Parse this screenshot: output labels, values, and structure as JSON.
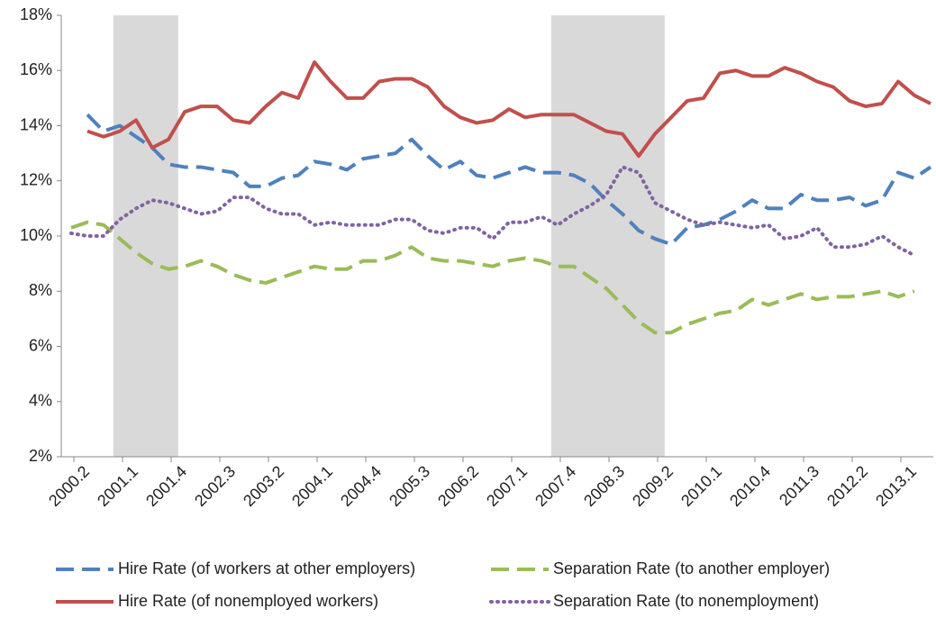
{
  "chart_data": {
    "type": "line",
    "categories": [
      null,
      "2000.2",
      null,
      null,
      "2001.1",
      null,
      null,
      "2001.4",
      null,
      null,
      "2002.3",
      null,
      null,
      "2003.2",
      null,
      null,
      "2004.1",
      null,
      null,
      "2004.4",
      null,
      null,
      "2005.3",
      null,
      null,
      "2006.2",
      null,
      null,
      "2007.1",
      null,
      null,
      "2007.4",
      null,
      null,
      "2008.3",
      null,
      null,
      "2009.2",
      null,
      null,
      "2010.1",
      null,
      null,
      "2010.4",
      null,
      null,
      "2011.3",
      null,
      null,
      "2012.2",
      null,
      null,
      "2013.1",
      null
    ],
    "series": [
      {
        "name": "Hire Rate (of workers at other employers)",
        "color": "#4f81bd",
        "dash": "dashed",
        "values": [
          null,
          14.4,
          13.8,
          14.0,
          13.6,
          13.2,
          12.6,
          12.5,
          12.5,
          12.4,
          12.3,
          11.8,
          11.8,
          12.1,
          12.2,
          12.7,
          12.6,
          12.4,
          12.8,
          12.9,
          13.0,
          13.5,
          12.9,
          12.4,
          12.7,
          12.2,
          12.1,
          12.3,
          12.5,
          12.3,
          12.3,
          12.2,
          11.9,
          11.3,
          10.8,
          10.2,
          9.9,
          9.7,
          10.3,
          10.4,
          10.6,
          10.9,
          11.3,
          11.0,
          11.0,
          11.5,
          11.3,
          11.3,
          11.4,
          11.1,
          11.3,
          12.3,
          12.1,
          12.5
        ]
      },
      {
        "name": "Separation Rate (to another employer)",
        "color": "#9bbb59",
        "dash": "dashed",
        "values": [
          10.3,
          10.5,
          10.4,
          9.9,
          9.4,
          9.0,
          8.8,
          8.9,
          9.1,
          8.9,
          8.6,
          8.4,
          8.3,
          8.5,
          8.7,
          8.9,
          8.8,
          8.8,
          9.1,
          9.1,
          9.3,
          9.6,
          9.2,
          9.1,
          9.1,
          9.0,
          8.9,
          9.1,
          9.2,
          9.1,
          8.9,
          8.9,
          8.5,
          8.1,
          7.5,
          6.9,
          6.5,
          6.5,
          6.8,
          7.0,
          7.2,
          7.3,
          7.7,
          7.5,
          7.7,
          7.9,
          7.7,
          7.8,
          7.8,
          7.9,
          8.0,
          7.8,
          8.0,
          null
        ]
      },
      {
        "name": "Hire Rate (of nonemployed workers)",
        "color": "#c0504d",
        "dash": "solid",
        "values": [
          null,
          13.8,
          13.6,
          13.8,
          14.2,
          13.2,
          13.5,
          14.5,
          14.7,
          14.7,
          14.2,
          14.1,
          14.7,
          15.2,
          15.0,
          16.3,
          15.6,
          15.0,
          15.0,
          15.6,
          15.7,
          15.7,
          15.4,
          14.7,
          14.3,
          14.1,
          14.2,
          14.6,
          14.3,
          14.4,
          14.4,
          14.4,
          14.1,
          13.8,
          13.7,
          12.9,
          13.7,
          14.3,
          14.9,
          15.0,
          15.9,
          16.0,
          15.8,
          15.8,
          16.1,
          15.9,
          15.6,
          15.4,
          14.9,
          14.7,
          14.8,
          15.6,
          15.1,
          14.8
        ]
      },
      {
        "name": "Separation Rate (to nonemployment)",
        "color": "#8064a2",
        "dash": "dotted",
        "values": [
          10.1,
          10.0,
          10.0,
          10.6,
          11.0,
          11.3,
          11.2,
          11.0,
          10.8,
          10.9,
          11.4,
          11.4,
          11.0,
          10.8,
          10.8,
          10.4,
          10.5,
          10.4,
          10.4,
          10.4,
          10.6,
          10.6,
          10.2,
          10.1,
          10.3,
          10.3,
          9.9,
          10.5,
          10.5,
          10.7,
          10.4,
          10.8,
          11.1,
          11.5,
          12.5,
          12.3,
          11.2,
          10.9,
          10.6,
          10.4,
          10.5,
          10.4,
          10.3,
          10.4,
          9.9,
          10.0,
          10.3,
          9.6,
          9.6,
          9.7,
          10.0,
          9.6,
          9.3,
          null
        ]
      }
    ],
    "ylim": [
      2,
      18
    ],
    "yticks": [
      {
        "value": 2,
        "label": "2%"
      },
      {
        "value": 4,
        "label": "4%"
      },
      {
        "value": 6,
        "label": "6%"
      },
      {
        "value": 8,
        "label": "8%"
      },
      {
        "value": 10,
        "label": "10%"
      },
      {
        "value": 12,
        "label": "12%"
      },
      {
        "value": 14,
        "label": "14%"
      },
      {
        "value": 16,
        "label": "16%"
      },
      {
        "value": 18,
        "label": "18%"
      }
    ],
    "shaded_periods": [
      {
        "from": "2001.1",
        "to": "2001.4"
      },
      {
        "from": "2007.4",
        "to": "2009.2"
      }
    ],
    "legend": "bottom"
  }
}
